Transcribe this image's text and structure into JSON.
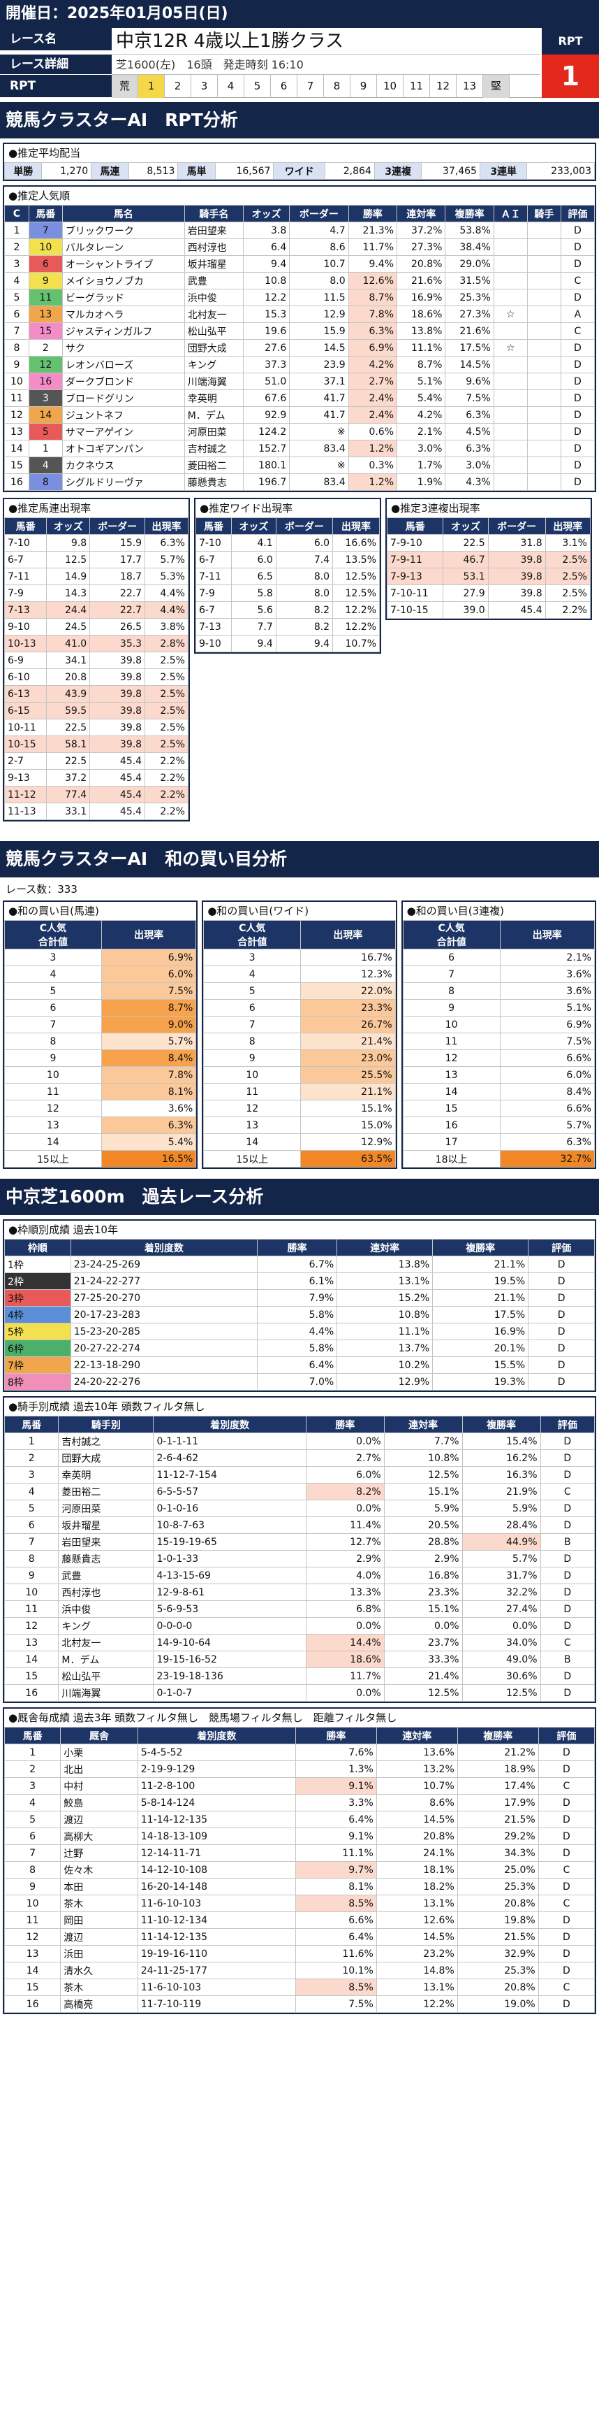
{
  "header": {
    "date": "開催日：2025年01月05日(日)"
  },
  "race": {
    "name_label": "レース名",
    "detail_label": "レース詳細",
    "rpt_label": "RPT",
    "name": "中京12R 4歳以上1勝クラス",
    "detail": "芝1600(左)　16頭　発走時刻 16:10",
    "rpt_header": "RPT",
    "rpt_value": "1",
    "rpt_scale": [
      "荒",
      "1",
      "2",
      "3",
      "4",
      "5",
      "6",
      "7",
      "8",
      "9",
      "10",
      "11",
      "12",
      "13",
      "堅"
    ],
    "rpt_active": "1"
  },
  "section1": {
    "title": "競馬クラスターAI　RPT分析"
  },
  "payout": {
    "title": "●推定平均配当",
    "labels": [
      "単勝",
      "馬連",
      "馬単",
      "ワイド",
      "3連複",
      "3連単"
    ],
    "values": [
      "1,270",
      "8,513",
      "16,567",
      "2,864",
      "37,465",
      "233,003"
    ]
  },
  "popularity": {
    "title": "●推定人気順",
    "headers": [
      "C",
      "馬番",
      "馬名",
      "騎手名",
      "オッズ",
      "ボーダー",
      "勝率",
      "連対率",
      "複勝率",
      "ＡＩ",
      "騎手",
      "評価"
    ],
    "rows": [
      [
        "1",
        "7",
        "ブリックワーク",
        "岩田望来",
        "3.8",
        "4.7",
        "21.3%",
        "37.2%",
        "53.8%",
        "",
        "",
        "D"
      ],
      [
        "2",
        "10",
        "バルタレーン",
        "西村淳也",
        "6.4",
        "8.6",
        "11.7%",
        "27.3%",
        "38.4%",
        "",
        "",
        "D"
      ],
      [
        "3",
        "6",
        "オーシャントライブ",
        "坂井瑠星",
        "9.4",
        "10.7",
        "9.4%",
        "20.8%",
        "29.0%",
        "",
        "",
        "D"
      ],
      [
        "4",
        "9",
        "メイショウノブカ",
        "武豊",
        "10.8",
        "8.0",
        "12.6%",
        "21.6%",
        "31.5%",
        "",
        "",
        "C"
      ],
      [
        "5",
        "11",
        "ビーグラッド",
        "浜中俊",
        "12.2",
        "11.5",
        "8.7%",
        "16.9%",
        "25.3%",
        "",
        "",
        "D"
      ],
      [
        "6",
        "13",
        "マルカオヘラ",
        "北村友一",
        "15.3",
        "12.9",
        "7.8%",
        "18.6%",
        "27.3%",
        "☆",
        "",
        "A"
      ],
      [
        "7",
        "15",
        "ジャスティンガルフ",
        "松山弘平",
        "19.6",
        "15.9",
        "6.3%",
        "13.8%",
        "21.6%",
        "",
        "",
        "C"
      ],
      [
        "8",
        "2",
        "サク",
        "団野大成",
        "27.6",
        "14.5",
        "6.9%",
        "11.1%",
        "17.5%",
        "☆",
        "",
        "D"
      ],
      [
        "9",
        "12",
        "レオンバローズ",
        "キング",
        "37.3",
        "23.9",
        "4.2%",
        "8.7%",
        "14.5%",
        "",
        "",
        "D"
      ],
      [
        "10",
        "16",
        "ダークブロンド",
        "川端海翼",
        "51.0",
        "37.1",
        "2.7%",
        "5.1%",
        "9.6%",
        "",
        "",
        "D"
      ],
      [
        "11",
        "3",
        "ブロードグリン",
        "幸英明",
        "67.6",
        "41.7",
        "2.4%",
        "5.4%",
        "7.5%",
        "",
        "",
        "D"
      ],
      [
        "12",
        "14",
        "ジュントネフ",
        "M．デム",
        "92.9",
        "41.7",
        "2.4%",
        "4.2%",
        "6.3%",
        "",
        "",
        "D"
      ],
      [
        "13",
        "5",
        "サマーアゲイン",
        "河原田菜",
        "124.2",
        "※",
        "0.6%",
        "2.1%",
        "4.5%",
        "",
        "",
        "D"
      ],
      [
        "14",
        "1",
        "オトコギアンパン",
        "吉村誠之",
        "152.7",
        "83.4",
        "1.2%",
        "3.0%",
        "6.3%",
        "",
        "",
        "D"
      ],
      [
        "15",
        "4",
        "カクネウス",
        "菱田裕二",
        "180.1",
        "※",
        "0.3%",
        "1.7%",
        "3.0%",
        "",
        "",
        "D"
      ],
      [
        "16",
        "8",
        "シグルドリーヴァ",
        "藤懸貴志",
        "196.7",
        "83.4",
        "1.2%",
        "1.9%",
        "4.3%",
        "",
        "",
        "D"
      ]
    ]
  },
  "umaren": {
    "title": "●推定馬連出現率",
    "headers": [
      "馬番",
      "オッズ",
      "ボーダー",
      "出現率"
    ],
    "rows": [
      [
        "7-10",
        "9.8",
        "15.9",
        "6.3%"
      ],
      [
        "6-7",
        "12.5",
        "17.7",
        "5.7%"
      ],
      [
        "7-11",
        "14.9",
        "18.7",
        "5.3%"
      ],
      [
        "7-9",
        "14.3",
        "22.7",
        "4.4%"
      ],
      [
        "7-13",
        "24.4",
        "22.7",
        "4.4%"
      ],
      [
        "9-10",
        "24.5",
        "26.5",
        "3.8%"
      ],
      [
        "10-13",
        "41.0",
        "35.3",
        "2.8%"
      ],
      [
        "6-9",
        "34.1",
        "39.8",
        "2.5%"
      ],
      [
        "6-10",
        "20.8",
        "39.8",
        "2.5%"
      ],
      [
        "6-13",
        "43.9",
        "39.8",
        "2.5%"
      ],
      [
        "6-15",
        "59.5",
        "39.8",
        "2.5%"
      ],
      [
        "10-11",
        "22.5",
        "39.8",
        "2.5%"
      ],
      [
        "10-15",
        "58.1",
        "39.8",
        "2.5%"
      ],
      [
        "2-7",
        "22.5",
        "45.4",
        "2.2%"
      ],
      [
        "9-13",
        "37.2",
        "45.4",
        "2.2%"
      ],
      [
        "11-12",
        "77.4",
        "45.4",
        "2.2%"
      ],
      [
        "11-13",
        "33.1",
        "45.4",
        "2.2%"
      ]
    ]
  },
  "wide": {
    "title": "●推定ワイド出現率",
    "headers": [
      "馬番",
      "オッズ",
      "ボーダー",
      "出現率"
    ],
    "rows": [
      [
        "7-10",
        "4.1",
        "6.0",
        "16.6%"
      ],
      [
        "6-7",
        "6.0",
        "7.4",
        "13.5%"
      ],
      [
        "7-11",
        "6.5",
        "8.0",
        "12.5%"
      ],
      [
        "7-9",
        "5.8",
        "8.0",
        "12.5%"
      ],
      [
        "6-7",
        "5.6",
        "8.2",
        "12.2%"
      ],
      [
        "7-13",
        "7.7",
        "8.2",
        "12.2%"
      ],
      [
        "9-10",
        "9.4",
        "9.4",
        "10.7%"
      ]
    ]
  },
  "sanrenpuku": {
    "title": "●推定3連複出現率",
    "headers": [
      "馬番",
      "オッズ",
      "ボーダー",
      "出現率"
    ],
    "rows": [
      [
        "7-9-10",
        "22.5",
        "31.8",
        "3.1%"
      ],
      [
        "7-9-11",
        "46.7",
        "39.8",
        "2.5%"
      ],
      [
        "7-9-13",
        "53.1",
        "39.8",
        "2.5%"
      ],
      [
        "7-10-11",
        "27.9",
        "39.8",
        "2.5%"
      ],
      [
        "7-10-15",
        "39.0",
        "45.4",
        "2.2%"
      ]
    ]
  },
  "section2": {
    "title": "競馬クラスターAI　和の買い目分析",
    "race_count": "レース数：333"
  },
  "wa_tansho": {
    "title": "●和の買い目(馬連)",
    "headers": [
      "C人気\n合計値",
      "出現率"
    ],
    "rows": [
      [
        "3",
        "6.9%"
      ],
      [
        "4",
        "6.0%"
      ],
      [
        "5",
        "7.5%"
      ],
      [
        "6",
        "8.7%"
      ],
      [
        "7",
        "9.0%"
      ],
      [
        "8",
        "5.7%"
      ],
      [
        "9",
        "8.4%"
      ],
      [
        "10",
        "7.8%"
      ],
      [
        "11",
        "8.1%"
      ],
      [
        "12",
        "3.6%"
      ],
      [
        "13",
        "6.3%"
      ],
      [
        "14",
        "5.4%"
      ],
      [
        "15以上",
        "16.5%"
      ]
    ]
  },
  "wa_wide": {
    "title": "●和の買い目(ワイド)",
    "headers": [
      "C人気\n合計値",
      "出現率"
    ],
    "rows": [
      [
        "3",
        "16.7%"
      ],
      [
        "4",
        "12.3%"
      ],
      [
        "5",
        "22.0%"
      ],
      [
        "6",
        "23.3%"
      ],
      [
        "7",
        "26.7%"
      ],
      [
        "8",
        "21.4%"
      ],
      [
        "9",
        "23.0%"
      ],
      [
        "10",
        "25.5%"
      ],
      [
        "11",
        "21.1%"
      ],
      [
        "12",
        "15.1%"
      ],
      [
        "13",
        "15.0%"
      ],
      [
        "14",
        "12.9%"
      ],
      [
        "15以上",
        "63.5%"
      ]
    ]
  },
  "wa_3ren": {
    "title": "●和の買い目(3連複)",
    "headers": [
      "C人気\n合計値",
      "出現率"
    ],
    "rows": [
      [
        "6",
        "2.1%"
      ],
      [
        "7",
        "3.6%"
      ],
      [
        "8",
        "3.6%"
      ],
      [
        "9",
        "5.1%"
      ],
      [
        "10",
        "6.9%"
      ],
      [
        "11",
        "7.5%"
      ],
      [
        "12",
        "6.6%"
      ],
      [
        "13",
        "6.0%"
      ],
      [
        "14",
        "8.4%"
      ],
      [
        "15",
        "6.6%"
      ],
      [
        "16",
        "5.7%"
      ],
      [
        "17",
        "6.3%"
      ],
      [
        "18以上",
        "32.7%"
      ]
    ]
  },
  "section3": {
    "title": "中京芝1600m　過去レース分析"
  },
  "waku": {
    "title": "●枠順別成績 過去10年",
    "headers": [
      "枠順",
      "着別度数",
      "勝率",
      "連対率",
      "複勝率",
      "評価"
    ],
    "rows": [
      [
        "1枠",
        "23-24-25-269",
        "6.7%",
        "13.8%",
        "21.1%",
        "D"
      ],
      [
        "2枠",
        "21-24-22-277",
        "6.1%",
        "13.1%",
        "19.5%",
        "D"
      ],
      [
        "3枠",
        "27-25-20-270",
        "7.9%",
        "15.2%",
        "21.1%",
        "D"
      ],
      [
        "4枠",
        "20-17-23-283",
        "5.8%",
        "10.8%",
        "17.5%",
        "D"
      ],
      [
        "5枠",
        "15-23-20-285",
        "4.4%",
        "11.1%",
        "16.9%",
        "D"
      ],
      [
        "6枠",
        "20-27-22-274",
        "5.8%",
        "13.7%",
        "20.1%",
        "D"
      ],
      [
        "7枠",
        "22-13-18-290",
        "6.4%",
        "10.2%",
        "15.5%",
        "D"
      ],
      [
        "8枠",
        "24-20-22-276",
        "7.0%",
        "12.9%",
        "19.3%",
        "D"
      ]
    ]
  },
  "jockey": {
    "title": "●騎手別成績 過去10年 頭数フィルタ無し",
    "headers": [
      "馬番",
      "騎手別",
      "着別度数",
      "勝率",
      "連対率",
      "複勝率",
      "評価"
    ],
    "rows": [
      [
        "1",
        "吉村誠之",
        "0-1-1-11",
        "0.0%",
        "7.7%",
        "15.4%",
        "D"
      ],
      [
        "2",
        "団野大成",
        "2-6-4-62",
        "2.7%",
        "10.8%",
        "16.2%",
        "D"
      ],
      [
        "3",
        "幸英明",
        "11-12-7-154",
        "6.0%",
        "12.5%",
        "16.3%",
        "D"
      ],
      [
        "4",
        "菱田裕二",
        "6-5-5-57",
        "8.2%",
        "15.1%",
        "21.9%",
        "C"
      ],
      [
        "5",
        "河原田菜",
        "0-1-0-16",
        "0.0%",
        "5.9%",
        "5.9%",
        "D"
      ],
      [
        "6",
        "坂井瑠星",
        "10-8-7-63",
        "11.4%",
        "20.5%",
        "28.4%",
        "D"
      ],
      [
        "7",
        "岩田望来",
        "15-19-19-65",
        "12.7%",
        "28.8%",
        "44.9%",
        "B"
      ],
      [
        "8",
        "藤懸貴志",
        "1-0-1-33",
        "2.9%",
        "2.9%",
        "5.7%",
        "D"
      ],
      [
        "9",
        "武豊",
        "4-13-15-69",
        "4.0%",
        "16.8%",
        "31.7%",
        "D"
      ],
      [
        "10",
        "西村淳也",
        "12-9-8-61",
        "13.3%",
        "23.3%",
        "32.2%",
        "D"
      ],
      [
        "11",
        "浜中俊",
        "5-6-9-53",
        "6.8%",
        "15.1%",
        "27.4%",
        "D"
      ],
      [
        "12",
        "キング",
        "0-0-0-0",
        "0.0%",
        "0.0%",
        "0.0%",
        "D"
      ],
      [
        "13",
        "北村友一",
        "14-9-10-64",
        "14.4%",
        "23.7%",
        "34.0%",
        "C"
      ],
      [
        "14",
        "M．デム",
        "19-15-16-52",
        "18.6%",
        "33.3%",
        "49.0%",
        "B"
      ],
      [
        "15",
        "松山弘平",
        "23-19-18-136",
        "11.7%",
        "21.4%",
        "30.6%",
        "D"
      ],
      [
        "16",
        "川端海翼",
        "0-1-0-7",
        "0.0%",
        "12.5%",
        "12.5%",
        "D"
      ]
    ]
  },
  "trainer": {
    "title": "●厩舎毎成績 過去3年 頭数フィルタ無し　競馬場フィルタ無し　距離フィルタ無し",
    "headers": [
      "馬番",
      "厩舎",
      "着別度数",
      "勝率",
      "連対率",
      "複勝率",
      "評価"
    ],
    "rows": [
      [
        "1",
        "小栗",
        "5-4-5-52",
        "7.6%",
        "13.6%",
        "21.2%",
        "D"
      ],
      [
        "2",
        "北出",
        "2-19-9-129",
        "1.3%",
        "13.2%",
        "18.9%",
        "D"
      ],
      [
        "3",
        "中村",
        "11-2-8-100",
        "9.1%",
        "10.7%",
        "17.4%",
        "C"
      ],
      [
        "4",
        "鮫島",
        "5-8-14-124",
        "3.3%",
        "8.6%",
        "17.9%",
        "D"
      ],
      [
        "5",
        "渡辺",
        "11-14-12-135",
        "6.4%",
        "14.5%",
        "21.5%",
        "D"
      ],
      [
        "6",
        "高柳大",
        "14-18-13-109",
        "9.1%",
        "20.8%",
        "29.2%",
        "D"
      ],
      [
        "7",
        "辻野",
        "12-14-11-71",
        "11.1%",
        "24.1%",
        "34.3%",
        "D"
      ],
      [
        "8",
        "佐々木",
        "14-12-10-108",
        "9.7%",
        "18.1%",
        "25.0%",
        "C"
      ],
      [
        "9",
        "本田",
        "16-20-14-148",
        "8.1%",
        "18.2%",
        "25.3%",
        "D"
      ],
      [
        "10",
        "茶木",
        "11-6-10-103",
        "8.5%",
        "13.1%",
        "20.8%",
        "C"
      ],
      [
        "11",
        "岡田",
        "11-10-12-134",
        "6.6%",
        "12.6%",
        "19.8%",
        "D"
      ],
      [
        "12",
        "渡辺",
        "11-14-12-135",
        "6.4%",
        "14.5%",
        "21.5%",
        "D"
      ],
      [
        "13",
        "浜田",
        "19-19-16-110",
        "11.6%",
        "23.2%",
        "32.9%",
        "D"
      ],
      [
        "14",
        "清水久",
        "24-11-25-177",
        "10.1%",
        "14.8%",
        "25.3%",
        "D"
      ],
      [
        "15",
        "茶木",
        "11-6-10-103",
        "8.5%",
        "13.1%",
        "20.8%",
        "C"
      ],
      [
        "16",
        "高橋亮",
        "11-7-10-119",
        "7.5%",
        "12.2%",
        "19.0%",
        "D"
      ]
    ]
  },
  "colors": {
    "navy": "#14254a",
    "header_cell": "#1d3566",
    "rpt_red": "#e2291c"
  }
}
